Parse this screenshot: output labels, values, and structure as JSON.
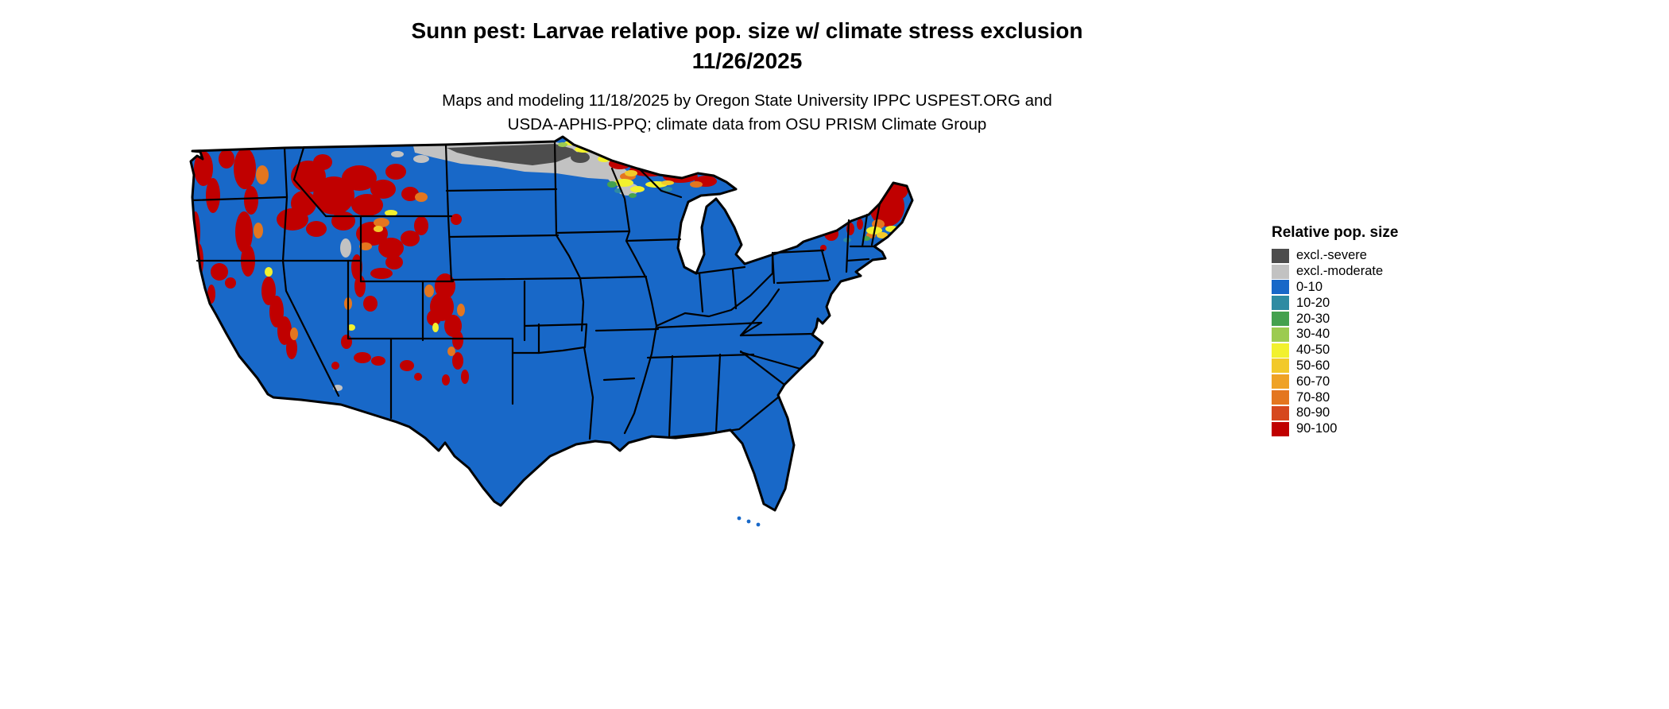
{
  "header": {
    "title_line1": "Sunn pest: Larvae relative pop. size w/ climate stress exclusion",
    "title_line2": "11/26/2025",
    "subtitle_line1": "Maps and modeling 11/18/2025 by Oregon State University IPPC USPEST.ORG and",
    "subtitle_line2": "USDA-APHIS-PPQ; climate data from OSU PRISM Climate Group"
  },
  "legend": {
    "title": "Relative pop. size",
    "items": [
      {
        "label": "excl.-severe",
        "color": "#4D4D4D"
      },
      {
        "label": "excl.-moderate",
        "color": "#C2C2C2"
      },
      {
        "label": "0-10",
        "color": "#1868C8"
      },
      {
        "label": "10-20",
        "color": "#2E8BA2"
      },
      {
        "label": "20-30",
        "color": "#44A14E"
      },
      {
        "label": "30-40",
        "color": "#9CCB50"
      },
      {
        "label": "40-50",
        "color": "#F2F12E"
      },
      {
        "label": "50-60",
        "color": "#F2C92A"
      },
      {
        "label": "60-70",
        "color": "#EFA226"
      },
      {
        "label": "70-80",
        "color": "#E4761F"
      },
      {
        "label": "80-90",
        "color": "#D6481E"
      },
      {
        "label": "90-100",
        "color": "#C00000"
      }
    ]
  },
  "map": {
    "base_fill": "#1868C8",
    "border_color": "#000000",
    "background": "#FFFFFF"
  }
}
